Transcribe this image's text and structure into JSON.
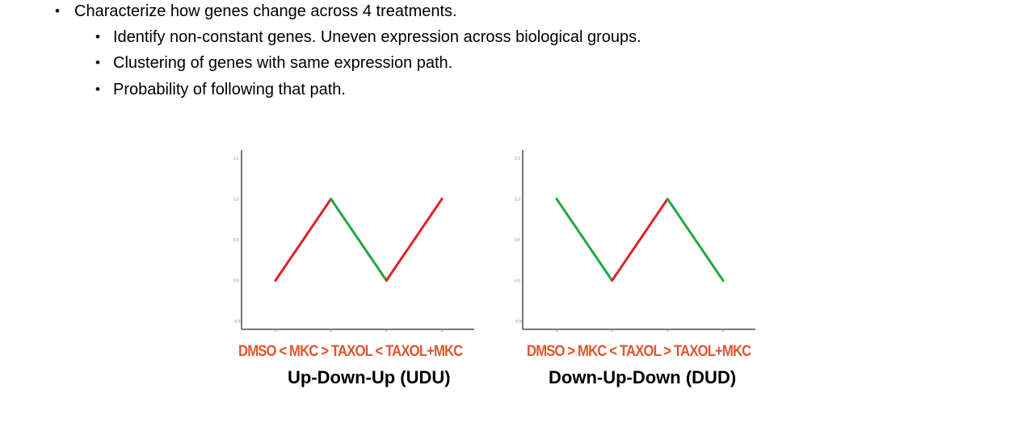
{
  "bullets": {
    "main": "Characterize how genes change across 4 treatments.",
    "sub": [
      "Identify non-constant genes. Uneven expression across biological groups.",
      "Clustering of genes with same expression path.",
      "Probability of following that path."
    ],
    "bullet_char": "•"
  },
  "colors": {
    "up": "#e02027",
    "down": "#22a83c",
    "order_text": "#e0562e",
    "axis": "#777777"
  },
  "chart_data": [
    {
      "type": "line",
      "title": "Up-Down-Up (UDU)",
      "xlabel": "DMSO < MKC > TAXOL < TAXOL+MKC",
      "x": [
        1,
        2,
        3,
        4
      ],
      "values": [
        0.0,
        1.0,
        0.0,
        1.0
      ],
      "segment_colors": [
        "up",
        "down",
        "up"
      ],
      "y_ticks": [
        "1.5",
        "1.0",
        "0.5",
        "0.0",
        "-0.5"
      ],
      "ylim": [
        -0.5,
        1.5
      ],
      "grid": false
    },
    {
      "type": "line",
      "title": "Down-Up-Down (DUD)",
      "xlabel": "DMSO > MKC < TAXOL > TAXOL+MKC",
      "x": [
        1,
        2,
        3,
        4
      ],
      "values": [
        1.0,
        0.0,
        1.0,
        0.0
      ],
      "segment_colors": [
        "down",
        "up",
        "down"
      ],
      "y_ticks": [
        "1.5",
        "1.0",
        "0.5",
        "0.0",
        "-0.5"
      ],
      "ylim": [
        -0.5,
        1.5
      ],
      "grid": false
    }
  ]
}
